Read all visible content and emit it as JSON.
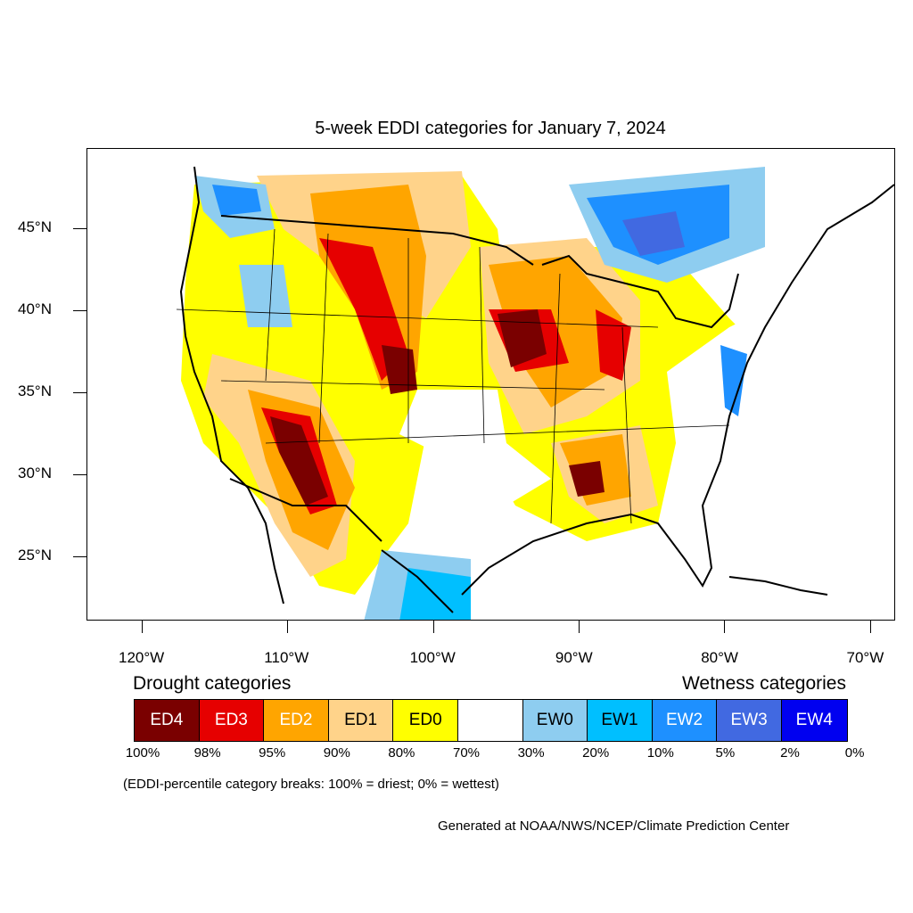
{
  "title": "5-week EDDI categories for January 7, 2024",
  "axes": {
    "lat_labels": [
      {
        "text": "45°N",
        "lat": 45
      },
      {
        "text": "40°N",
        "lat": 40
      },
      {
        "text": "35°N",
        "lat": 35
      },
      {
        "text": "30°N",
        "lat": 30
      },
      {
        "text": "25°N",
        "lat": 25
      }
    ],
    "lon_labels": [
      {
        "text": "120°W",
        "lon": -120
      },
      {
        "text": "110°W",
        "lon": -110
      },
      {
        "text": "100°W",
        "lon": -100
      },
      {
        "text": "90°W",
        "lon": -90
      },
      {
        "text": "80°W",
        "lon": -80
      },
      {
        "text": "70°W",
        "lon": -70
      }
    ]
  },
  "legend": {
    "drought_heading": "Drought categories",
    "wetness_heading": "Wetness categories",
    "categories": [
      {
        "label": "ED4",
        "color": "#7a0000",
        "text_color": "#ffffff"
      },
      {
        "label": "ED3",
        "color": "#e60000",
        "text_color": "#ffffff"
      },
      {
        "label": "ED2",
        "color": "#ffa500",
        "text_color": "#ffffff"
      },
      {
        "label": "ED1",
        "color": "#ffd38a",
        "text_color": "#000000"
      },
      {
        "label": "ED0",
        "color": "#ffff00",
        "text_color": "#000000"
      },
      {
        "label": "",
        "color": "#ffffff",
        "text_color": "#000000"
      },
      {
        "label": "EW0",
        "color": "#8ecdf0",
        "text_color": "#000000"
      },
      {
        "label": "EW1",
        "color": "#00bfff",
        "text_color": "#000000"
      },
      {
        "label": "EW2",
        "color": "#1e90ff",
        "text_color": "#ffffff"
      },
      {
        "label": "EW3",
        "color": "#4169e1",
        "text_color": "#ffffff"
      },
      {
        "label": "EW4",
        "color": "#0000f0",
        "text_color": "#ffffff"
      }
    ],
    "percentiles": [
      "100%",
      "98%",
      "95%",
      "90%",
      "80%",
      "70%",
      "30%",
      "20%",
      "10%",
      "5%",
      "2%",
      "0%"
    ],
    "note": "(EDDI-percentile category breaks: 100% = driest; 0% = wettest)"
  },
  "credit": "Generated at NOAA/NWS/NCEP/Climate Prediction Center"
}
